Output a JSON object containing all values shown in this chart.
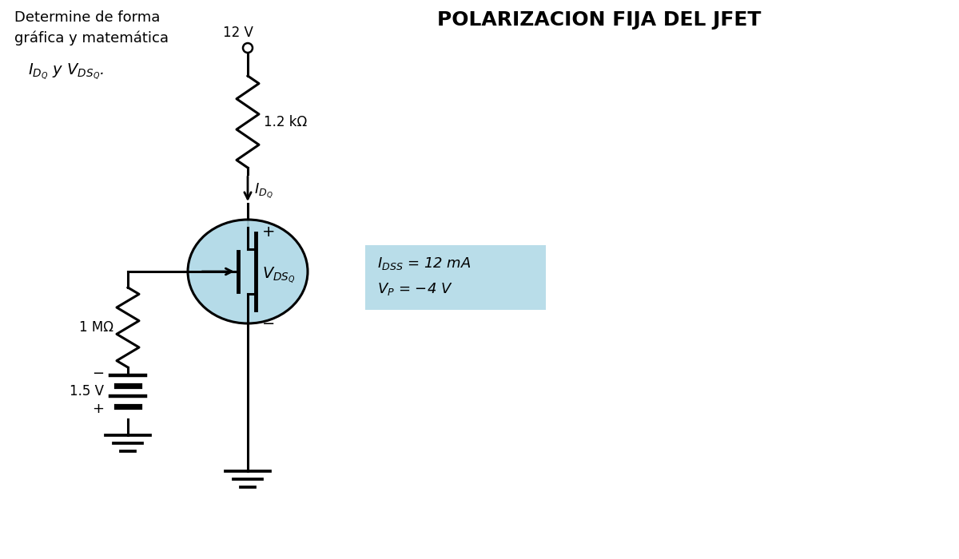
{
  "title": "POLARIZACION FIJA DEL JFET",
  "subtitle_line1": "Determine de forma",
  "subtitle_line2": "gráfica y matemática",
  "subtitle_line3_math": "$I_{D_Q}$ y $V_{DS_Q}$.",
  "vdd": "12 V",
  "rd_label": "1.2 kΩ",
  "id_label": "$I_{D_Q}$",
  "vdsq_label": "$V_{DS_Q}$",
  "rg_label": "1 MΩ",
  "vgg_label": "1.5 V",
  "idss_label": "$I_{DSS}$ = 12 mA",
  "vp_label": "$V_P$ = −4 V",
  "plus": "+",
  "minus": "−",
  "bg_color": "#ffffff",
  "box_color": "#add8e6",
  "line_color": "#000000",
  "jfet_circle_color": "#add8e6"
}
